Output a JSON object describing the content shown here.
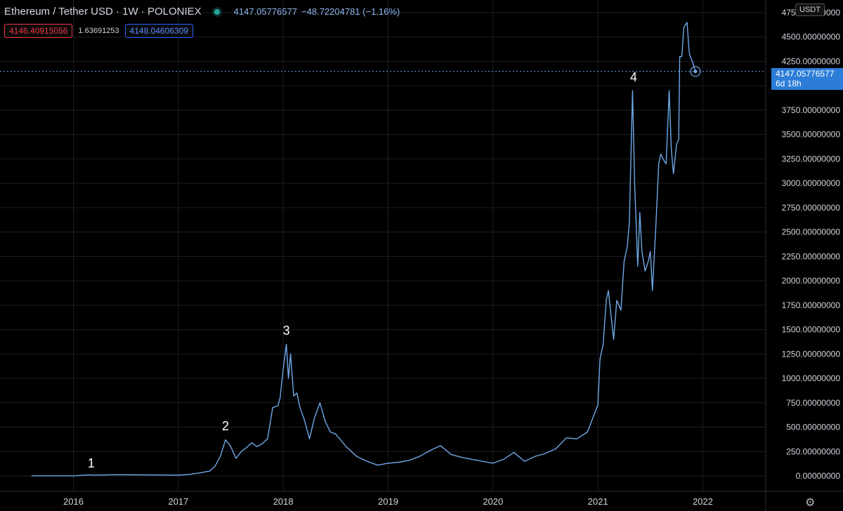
{
  "header": {
    "symbol": "Ethereum / Tether USD · 1W · POLONIEX",
    "last": "4147.05776577",
    "change": "−48.72204781 (−1.16%)",
    "bid": "4146.40915056",
    "spread": "1.63691253",
    "ask": "4148.04606309"
  },
  "currency": "USDT",
  "price_tag": {
    "price": "4147.05776577",
    "countdown": "6d 18h"
  },
  "colors": {
    "background": "#000000",
    "line": "#6fa8e8",
    "grid": "#1c1f26",
    "price_tag": "#2b7dd8",
    "red": "#f23645",
    "blue": "#2962ff"
  },
  "chart_data": {
    "type": "line",
    "title": "",
    "xlabel": "",
    "ylabel": "",
    "xlim": [
      2015.3,
      2022.6
    ],
    "ylim": [
      0,
      4750
    ],
    "x_ticks": [
      "2016",
      "2017",
      "2018",
      "2019",
      "2020",
      "2021",
      "2022"
    ],
    "y_ticks": [
      "0.00000000",
      "250.00000000",
      "500.00000000",
      "750.00000000",
      "1000.00000000",
      "1250.00000000",
      "1500.00000000",
      "1750.00000000",
      "2000.00000000",
      "2250.00000000",
      "2500.00000000",
      "2750.00000000",
      "3000.00000000",
      "3250.00000000",
      "3500.00000000",
      "3750.00000000",
      "4000.00000000",
      "4250.00000000",
      "4500.00000000",
      "4750.00000000"
    ],
    "grid": true,
    "annotations": [
      {
        "text": "1",
        "x": 2016.17,
        "y": 0
      },
      {
        "text": "2",
        "x": 2017.45,
        "y": 380
      },
      {
        "text": "3",
        "x": 2018.03,
        "y": 1360
      },
      {
        "text": "4",
        "x": 2021.34,
        "y": 3960
      }
    ],
    "current_price": 4147.06,
    "series": [
      {
        "name": "",
        "x": [
          2015.6,
          2015.8,
          2016.0,
          2016.15,
          2016.2,
          2016.4,
          2016.6,
          2016.8,
          2017.0,
          2017.1,
          2017.2,
          2017.3,
          2017.35,
          2017.4,
          2017.45,
          2017.5,
          2017.55,
          2017.6,
          2017.65,
          2017.7,
          2017.75,
          2017.8,
          2017.85,
          2017.9,
          2017.95,
          2017.97,
          2018.0,
          2018.03,
          2018.05,
          2018.07,
          2018.1,
          2018.13,
          2018.16,
          2018.2,
          2018.25,
          2018.3,
          2018.35,
          2018.4,
          2018.45,
          2018.5,
          2018.6,
          2018.7,
          2018.8,
          2018.9,
          2019.0,
          2019.1,
          2019.2,
          2019.3,
          2019.4,
          2019.5,
          2019.6,
          2019.7,
          2019.8,
          2019.9,
          2020.0,
          2020.1,
          2020.2,
          2020.3,
          2020.4,
          2020.5,
          2020.6,
          2020.7,
          2020.8,
          2020.9,
          2021.0,
          2021.02,
          2021.05,
          2021.08,
          2021.1,
          2021.12,
          2021.15,
          2021.18,
          2021.2,
          2021.22,
          2021.25,
          2021.28,
          2021.3,
          2021.33,
          2021.35,
          2021.38,
          2021.4,
          2021.42,
          2021.45,
          2021.48,
          2021.5,
          2021.52,
          2021.55,
          2021.58,
          2021.6,
          2021.62,
          2021.65,
          2021.68,
          2021.7,
          2021.72,
          2021.75,
          2021.77,
          2021.78,
          2021.8,
          2021.82,
          2021.85,
          2021.87,
          2021.88,
          2021.9,
          2021.93
        ],
        "values": [
          1,
          1,
          1,
          10,
          8,
          12,
          11,
          9,
          8,
          15,
          30,
          50,
          100,
          200,
          370,
          300,
          180,
          250,
          290,
          340,
          300,
          330,
          380,
          700,
          720,
          800,
          1100,
          1350,
          1000,
          1250,
          820,
          850,
          700,
          580,
          380,
          600,
          750,
          560,
          450,
          430,
          300,
          200,
          150,
          110,
          130,
          140,
          160,
          200,
          260,
          310,
          220,
          190,
          170,
          150,
          130,
          170,
          240,
          150,
          200,
          230,
          280,
          390,
          380,
          450,
          730,
          1200,
          1350,
          1800,
          1900,
          1700,
          1400,
          1800,
          1750,
          1700,
          2200,
          2350,
          2600,
          3950,
          3000,
          2150,
          2700,
          2300,
          2100,
          2200,
          2300,
          1900,
          2500,
          3200,
          3300,
          3250,
          3200,
          3950,
          3350,
          3100,
          3400,
          3450,
          4300,
          4300,
          4600,
          4650,
          4350,
          4300,
          4250,
          4147
        ]
      }
    ]
  }
}
